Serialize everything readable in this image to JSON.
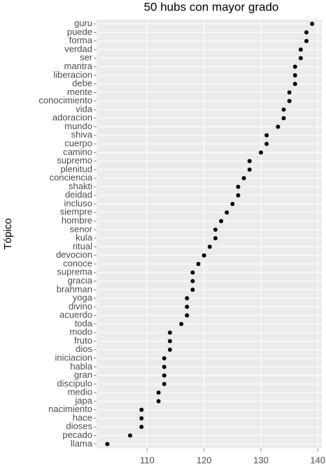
{
  "chart_data": {
    "type": "dot",
    "title": "50 hubs con mayor grado",
    "y_label": "Tópico",
    "categories": [
      "guru",
      "puede",
      "forma",
      "verdad",
      "ser",
      "mantra",
      "liberacion",
      "debe",
      "mente",
      "conocimiento",
      "vida",
      "adoracion",
      "mundo",
      "shiva",
      "cuerpo",
      "camino",
      "supremo",
      "plenitud",
      "conciencia",
      "shakti",
      "deidad",
      "incluso",
      "siempre",
      "hombre",
      "senor",
      "kula",
      "ritual",
      "devocion",
      "conoce",
      "suprema",
      "gracia",
      "brahman",
      "yoga",
      "divino",
      "acuerdo",
      "toda",
      "modo",
      "fruto",
      "dios",
      "iniciacion",
      "habla",
      "gran",
      "discipulo",
      "medio",
      "japa",
      "nacimiento",
      "hace",
      "dioses",
      "pecado",
      "llama"
    ],
    "values": [
      139,
      138,
      138,
      137,
      137,
      136,
      136,
      136,
      135,
      135,
      134,
      134,
      133,
      131,
      131,
      130,
      128,
      128,
      127,
      126,
      126,
      125,
      124,
      123,
      122,
      122,
      121,
      120,
      119,
      118,
      118,
      118,
      117,
      117,
      117,
      116,
      114,
      114,
      114,
      113,
      113,
      113,
      113,
      112,
      112,
      109,
      109,
      109,
      107,
      103
    ],
    "color": "#000000",
    "xlim": [
      101.1,
      140.7
    ],
    "xticks": [
      110,
      120,
      130,
      140
    ],
    "grid": true
  }
}
